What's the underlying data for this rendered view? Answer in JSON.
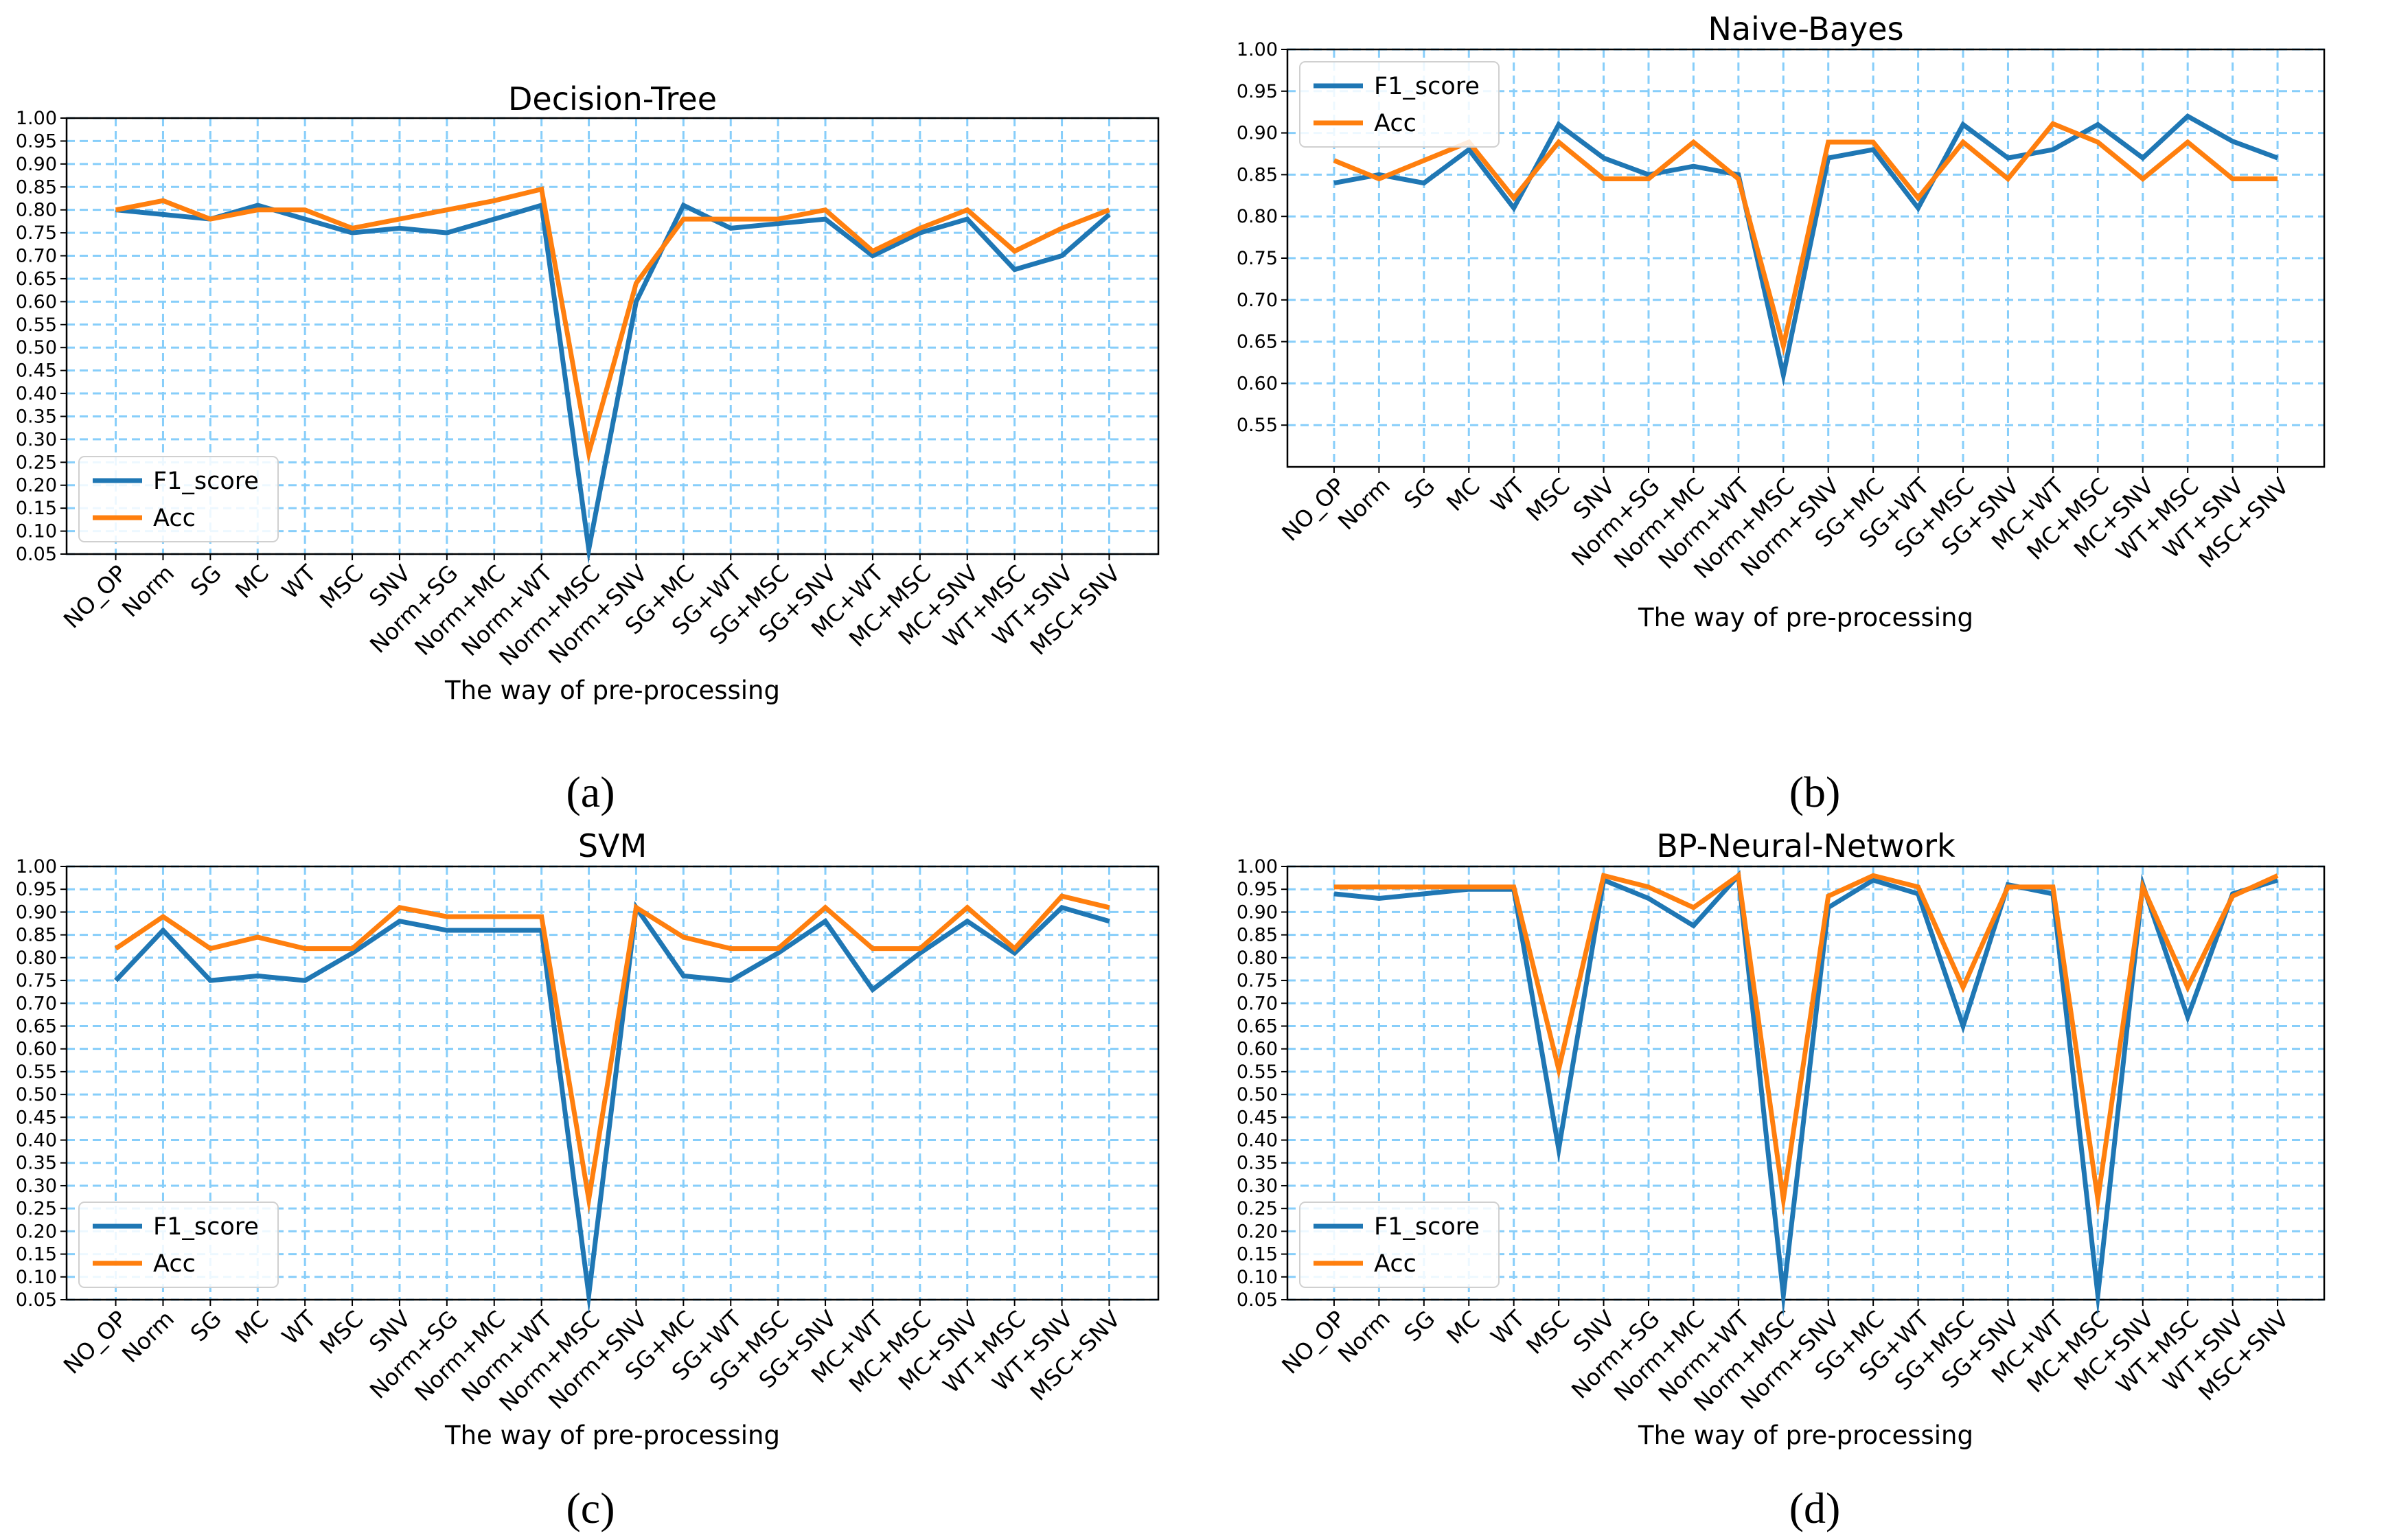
{
  "colors": {
    "f1": "#1f77b4",
    "acc": "#ff7f0e",
    "grid": "#87cefa",
    "axis": "#000000",
    "text": "#000000"
  },
  "chart_data": [
    {
      "type": "line",
      "title": "Decision-Tree",
      "panel_label": "(a)",
      "xlabel": "The way of pre-processing",
      "ylabel": "",
      "categories": [
        "NO_OP",
        "Norm",
        "SG",
        "MC",
        "WT",
        "MSC",
        "SNV",
        "Norm+SG",
        "Norm+MC",
        "Norm+WT",
        "Norm+MSC",
        "Norm+SNV",
        "SG+MC",
        "SG+WT",
        "SG+MSC",
        "SG+SNV",
        "MC+WT",
        "MC+MSC",
        "MC+SNV",
        "WT+MSC",
        "WT+SNV",
        "MSC+SNV"
      ],
      "series": [
        {
          "name": "F1_score",
          "color_key": "f1",
          "values": [
            0.8,
            0.79,
            0.78,
            0.81,
            0.78,
            0.75,
            0.76,
            0.75,
            0.78,
            0.81,
            0.06,
            0.6,
            0.81,
            0.76,
            0.77,
            0.78,
            0.7,
            0.75,
            0.78,
            0.67,
            0.7,
            0.79
          ]
        },
        {
          "name": "Acc",
          "color_key": "acc",
          "values": [
            0.8,
            0.82,
            0.78,
            0.8,
            0.8,
            0.76,
            0.78,
            0.8,
            0.82,
            0.845,
            0.27,
            0.64,
            0.78,
            0.78,
            0.78,
            0.8,
            0.71,
            0.76,
            0.8,
            0.71,
            0.76,
            0.8
          ]
        }
      ],
      "ylim": [
        0.05,
        1.0
      ],
      "yticks": [
        0.05,
        0.1,
        0.15,
        0.2,
        0.25,
        0.3,
        0.35,
        0.4,
        0.45,
        0.5,
        0.55,
        0.6,
        0.65,
        0.7,
        0.75,
        0.8,
        0.85,
        0.9,
        0.95,
        1.0
      ],
      "legend": "bottom-left",
      "grid": true
    },
    {
      "type": "line",
      "title": "Naive-Bayes",
      "panel_label": "(b)",
      "xlabel": "The way of pre-processing",
      "ylabel": "",
      "categories": [
        "NO_OP",
        "Norm",
        "SG",
        "MC",
        "WT",
        "MSC",
        "SNV",
        "Norm+SG",
        "Norm+MC",
        "Norm+WT",
        "Norm+MSC",
        "Norm+SNV",
        "SG+MC",
        "SG+WT",
        "SG+MSC",
        "SG+SNV",
        "MC+WT",
        "MC+MSC",
        "MC+SNV",
        "WT+MSC",
        "WT+SNV",
        "MSC+SNV"
      ],
      "series": [
        {
          "name": "F1_score",
          "color_key": "f1",
          "values": [
            0.84,
            0.85,
            0.84,
            0.88,
            0.81,
            0.91,
            0.87,
            0.85,
            0.86,
            0.85,
            0.61,
            0.87,
            0.88,
            0.81,
            0.91,
            0.87,
            0.88,
            0.91,
            0.87,
            0.92,
            0.89,
            0.87
          ]
        },
        {
          "name": "Acc",
          "color_key": "acc",
          "values": [
            0.867,
            0.845,
            0.867,
            0.889,
            0.822,
            0.889,
            0.845,
            0.845,
            0.889,
            0.845,
            0.645,
            0.889,
            0.889,
            0.822,
            0.889,
            0.845,
            0.911,
            0.889,
            0.845,
            0.889,
            0.845,
            0.845
          ]
        }
      ],
      "ylim": [
        0.5,
        1.0
      ],
      "yticks": [
        0.55,
        0.6,
        0.65,
        0.7,
        0.75,
        0.8,
        0.85,
        0.9,
        0.95,
        1.0
      ],
      "legend": "top-left",
      "grid": true
    },
    {
      "type": "line",
      "title": "SVM",
      "panel_label": "(c)",
      "xlabel": "The way of pre-processing",
      "ylabel": "",
      "categories": [
        "NO_OP",
        "Norm",
        "SG",
        "MC",
        "WT",
        "MSC",
        "SNV",
        "Norm+SG",
        "Norm+MC",
        "Norm+WT",
        "Norm+MSC",
        "Norm+SNV",
        "SG+MC",
        "SG+WT",
        "SG+MSC",
        "SG+SNV",
        "MC+WT",
        "MC+MSC",
        "MC+SNV",
        "WT+MSC",
        "WT+SNV",
        "MSC+SNV"
      ],
      "series": [
        {
          "name": "F1_score",
          "color_key": "f1",
          "values": [
            0.75,
            0.86,
            0.75,
            0.76,
            0.75,
            0.81,
            0.88,
            0.86,
            0.86,
            0.86,
            0.06,
            0.91,
            0.76,
            0.75,
            0.81,
            0.88,
            0.73,
            0.81,
            0.88,
            0.81,
            0.91,
            0.88
          ]
        },
        {
          "name": "Acc",
          "color_key": "acc",
          "values": [
            0.82,
            0.89,
            0.82,
            0.845,
            0.82,
            0.82,
            0.91,
            0.89,
            0.89,
            0.89,
            0.27,
            0.91,
            0.845,
            0.82,
            0.82,
            0.91,
            0.82,
            0.82,
            0.91,
            0.82,
            0.935,
            0.91
          ]
        }
      ],
      "ylim": [
        0.05,
        1.0
      ],
      "yticks": [
        0.05,
        0.1,
        0.15,
        0.2,
        0.25,
        0.3,
        0.35,
        0.4,
        0.45,
        0.5,
        0.55,
        0.6,
        0.65,
        0.7,
        0.75,
        0.8,
        0.85,
        0.9,
        0.95,
        1.0
      ],
      "legend": "bottom-left",
      "grid": true
    },
    {
      "type": "line",
      "title": "BP-Neural-Network",
      "panel_label": "(d)",
      "xlabel": "The way of pre-processing",
      "ylabel": "",
      "categories": [
        "NO_OP",
        "Norm",
        "SG",
        "MC",
        "WT",
        "MSC",
        "SNV",
        "Norm+SG",
        "Norm+MC",
        "Norm+WT",
        "Norm+MSC",
        "Norm+SNV",
        "SG+MC",
        "SG+WT",
        "SG+MSC",
        "SG+SNV",
        "MC+WT",
        "MC+MSC",
        "MC+SNV",
        "WT+MSC",
        "WT+SNV",
        "MSC+SNV"
      ],
      "series": [
        {
          "name": "F1_score",
          "color_key": "f1",
          "values": [
            0.94,
            0.93,
            0.94,
            0.95,
            0.95,
            0.38,
            0.97,
            0.93,
            0.87,
            0.98,
            0.06,
            0.91,
            0.97,
            0.94,
            0.65,
            0.96,
            0.94,
            0.06,
            0.96,
            0.67,
            0.94,
            0.97
          ]
        },
        {
          "name": "Acc",
          "color_key": "acc",
          "values": [
            0.955,
            0.955,
            0.955,
            0.955,
            0.955,
            0.555,
            0.98,
            0.955,
            0.91,
            0.98,
            0.27,
            0.935,
            0.98,
            0.955,
            0.735,
            0.955,
            0.955,
            0.27,
            0.955,
            0.735,
            0.935,
            0.98
          ]
        }
      ],
      "ylim": [
        0.05,
        1.0
      ],
      "yticks": [
        0.05,
        0.1,
        0.15,
        0.2,
        0.25,
        0.3,
        0.35,
        0.4,
        0.45,
        0.5,
        0.55,
        0.6,
        0.65,
        0.7,
        0.75,
        0.8,
        0.85,
        0.9,
        0.95,
        1.0
      ],
      "legend": "bottom-left",
      "grid": true
    }
  ]
}
